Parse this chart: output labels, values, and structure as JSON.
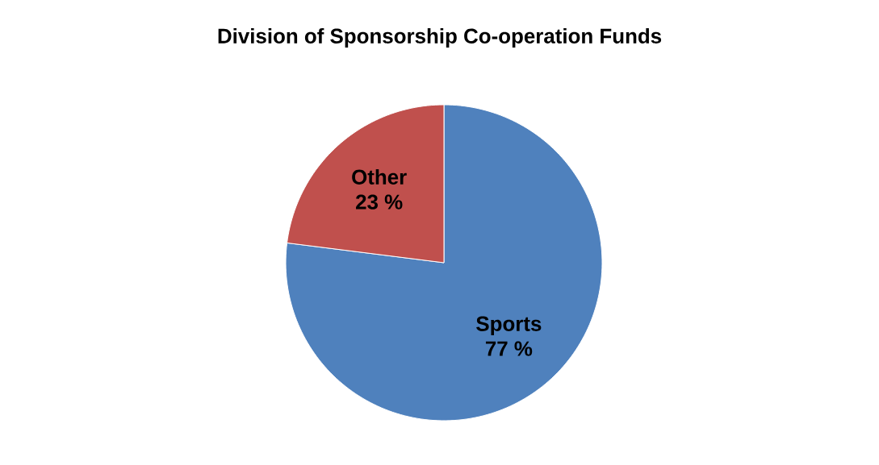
{
  "chart_data": {
    "type": "pie",
    "title": "Division of Sponsorship Co-operation Funds",
    "categories": [
      "Sports",
      "Other"
    ],
    "values": [
      77,
      23
    ],
    "colors": [
      "#4f81bd",
      "#c0504d"
    ],
    "value_labels": [
      "77 %",
      "23 %"
    ]
  }
}
